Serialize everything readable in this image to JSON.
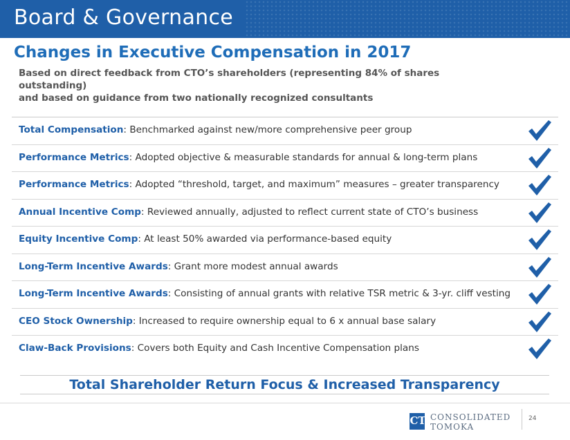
{
  "header": {
    "title": "Board & Governance"
  },
  "main_title": "Changes in Executive Compensation in 2017",
  "subtitle": {
    "line1": "Based on direct feedback from CTO’s shareholders (representing 84% of shares outstanding)",
    "line2": "and based on guidance from two nationally recognized consultants"
  },
  "items": [
    {
      "key": "Total Compensation",
      "text": ": Benchmarked against new/more comprehensive peer group",
      "checked": true
    },
    {
      "key": "Performance Metrics",
      "text": ": Adopted objective & measurable standards for annual & long-term plans",
      "checked": true
    },
    {
      "key": "Performance Metrics",
      "text": ": Adopted “threshold, target, and maximum” measures – greater transparency",
      "checked": true
    },
    {
      "key": "Annual Incentive Comp",
      "text": ": Reviewed annually, adjusted to reflect current state of CTO’s business",
      "checked": true
    },
    {
      "key": "Equity Incentive Comp",
      "text": ": At least 50% awarded via performance-based equity",
      "checked": true
    },
    {
      "key": "Long-Term Incentive Awards",
      "text": ": Grant more modest annual awards",
      "checked": true
    },
    {
      "key": "Long-Term Incentive Awards",
      "text": ": Consisting of annual grants with relative TSR metric & 3-yr. cliff vesting",
      "checked": true
    },
    {
      "key": "CEO Stock Ownership",
      "text": ": Increased to require ownership equal to 6 x annual base salary",
      "checked": true
    },
    {
      "key": "Claw-Back Provisions",
      "text": ": Covers both Equity and Cash Incentive Compensation plans",
      "checked": true
    }
  ],
  "focus_statement": "Total Shareholder Return Focus & Increased Transparency",
  "footer": {
    "logo_mark": "CT",
    "logo_line1": "CONSOLIDATED",
    "logo_line2": "TOMOKA",
    "page_number": "24"
  },
  "colors": {
    "brand_blue": "#1f5fa8",
    "check_blue": "#1f5fa8",
    "body_text": "#333333"
  },
  "icons": {
    "row_marker": "checkmark-icon"
  }
}
